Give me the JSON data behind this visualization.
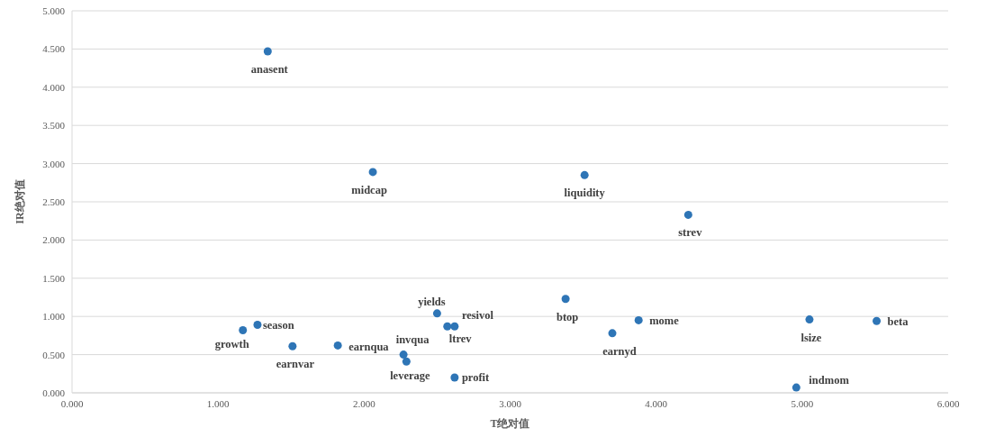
{
  "chart_data": {
    "type": "scatter",
    "xlabel": "T绝对值",
    "ylabel": "IR绝对值",
    "grid": "y",
    "marker": "circle",
    "xlim": [
      0,
      6
    ],
    "xticks": [
      {
        "value": 0,
        "label": "0.000"
      },
      {
        "value": 1,
        "label": "1.000"
      },
      {
        "value": 2,
        "label": "2.000"
      },
      {
        "value": 3,
        "label": "3.000"
      },
      {
        "value": 4,
        "label": "4.000"
      },
      {
        "value": 5,
        "label": "5.000"
      },
      {
        "value": 6,
        "label": "6.000"
      }
    ],
    "ylim": [
      0,
      5
    ],
    "yticks": [
      {
        "value": 0,
        "label": "0.000"
      },
      {
        "value": 0.5,
        "label": "0.500"
      },
      {
        "value": 1,
        "label": "1.000"
      },
      {
        "value": 1.5,
        "label": "1.500"
      },
      {
        "value": 2,
        "label": "2.000"
      },
      {
        "value": 2.5,
        "label": "2.500"
      },
      {
        "value": 3,
        "label": "3.000"
      },
      {
        "value": 3.5,
        "label": "3.500"
      },
      {
        "value": 4,
        "label": "4.000"
      },
      {
        "value": 4.5,
        "label": "4.500"
      },
      {
        "value": 5,
        "label": "5.000"
      }
    ],
    "series": [
      {
        "color": "#2e75b6",
        "x": [
          1.34,
          2.06,
          3.51,
          4.22,
          3.38,
          2.5,
          2.62,
          2.57,
          3.88,
          3.7,
          5.05,
          5.51,
          4.96,
          1.17,
          1.27,
          1.51,
          1.82,
          2.27,
          2.29,
          2.62
        ],
        "values": [
          4.47,
          2.89,
          2.85,
          2.33,
          1.23,
          1.04,
          0.87,
          0.87,
          0.95,
          0.78,
          0.96,
          0.94,
          0.07,
          0.82,
          0.89,
          0.61,
          0.62,
          0.5,
          0.41,
          0.2
        ]
      }
    ],
    "annotations": [
      {
        "text": "anasent",
        "x": 1.34,
        "y": 4.47
      },
      {
        "text": "midcap",
        "x": 2.06,
        "y": 2.89
      },
      {
        "text": "liquidity",
        "x": 3.51,
        "y": 2.85
      },
      {
        "text": "strev",
        "x": 4.22,
        "y": 2.33
      },
      {
        "text": "btop",
        "x": 3.38,
        "y": 1.23
      },
      {
        "text": "yields",
        "x": 2.5,
        "y": 1.04
      },
      {
        "text": "resivol",
        "x": 2.62,
        "y": 0.87
      },
      {
        "text": "ltrev",
        "x": 2.57,
        "y": 0.87
      },
      {
        "text": "mome",
        "x": 3.88,
        "y": 0.95
      },
      {
        "text": "earnyd",
        "x": 3.7,
        "y": 0.78
      },
      {
        "text": "lsize",
        "x": 5.05,
        "y": 0.96
      },
      {
        "text": "beta",
        "x": 5.51,
        "y": 0.94
      },
      {
        "text": "indmom",
        "x": 4.96,
        "y": 0.07
      },
      {
        "text": "growth",
        "x": 1.17,
        "y": 0.82
      },
      {
        "text": "season",
        "x": 1.27,
        "y": 0.89
      },
      {
        "text": "earnvar",
        "x": 1.51,
        "y": 0.61
      },
      {
        "text": "earnqua",
        "x": 1.82,
        "y": 0.62
      },
      {
        "text": "invqua",
        "x": 2.27,
        "y": 0.5
      },
      {
        "text": "leverage",
        "x": 2.29,
        "y": 0.41
      },
      {
        "text": "profit",
        "x": 2.62,
        "y": 0.2
      }
    ]
  }
}
